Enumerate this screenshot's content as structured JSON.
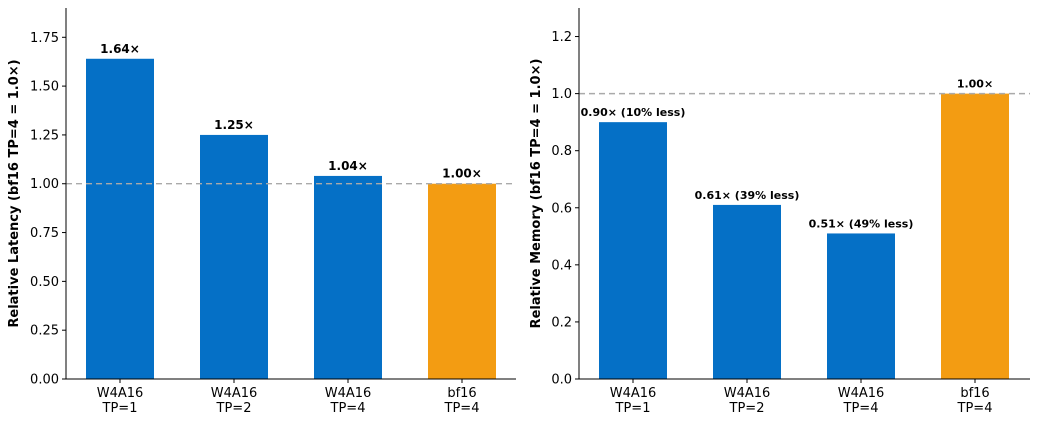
{
  "colors": {
    "quantized": "#0570c6",
    "baseline": "#f39c12",
    "reference_line": "#aaaaaa"
  },
  "chart_data": [
    {
      "type": "bar",
      "title": "",
      "xlabel": "",
      "ylabel": "Relative Latency (bf16 TP=4 = 1.0×)",
      "categories": [
        [
          "W4A16",
          "TP=1"
        ],
        [
          "W4A16",
          "TP=2"
        ],
        [
          "W4A16",
          "TP=4"
        ],
        [
          "bf16",
          "TP=4"
        ]
      ],
      "values": [
        1.64,
        1.25,
        1.04,
        1.0
      ],
      "data_labels": [
        "1.64×",
        "1.25×",
        "1.04×",
        "1.00×"
      ],
      "bar_colors": [
        "#0570c6",
        "#0570c6",
        "#0570c6",
        "#f39c12"
      ],
      "ylim": [
        0,
        1.9
      ],
      "yticks": [
        0,
        0.25,
        0.5,
        0.75,
        1.0,
        1.25,
        1.5,
        1.75
      ],
      "ytick_labels": [
        "0.00",
        "0.25",
        "0.50",
        "0.75",
        "1.00",
        "1.25",
        "1.50",
        "1.75"
      ],
      "reference_line": 1.0,
      "grid": false
    },
    {
      "type": "bar",
      "title": "",
      "xlabel": "",
      "ylabel": "Relative Memory (bf16 TP=4 = 1.0×)",
      "categories": [
        [
          "W4A16",
          "TP=1"
        ],
        [
          "W4A16",
          "TP=2"
        ],
        [
          "W4A16",
          "TP=4"
        ],
        [
          "bf16",
          "TP=4"
        ]
      ],
      "values": [
        0.9,
        0.61,
        0.51,
        1.0
      ],
      "data_labels": [
        "0.90× (10% less)",
        "0.61× (39% less)",
        "0.51× (49% less)",
        "1.00×"
      ],
      "bar_colors": [
        "#0570c6",
        "#0570c6",
        "#0570c6",
        "#f39c12"
      ],
      "ylim": [
        0,
        1.3
      ],
      "yticks": [
        0,
        0.2,
        0.4,
        0.6,
        0.8,
        1.0,
        1.2
      ],
      "ytick_labels": [
        "0.0",
        "0.2",
        "0.4",
        "0.6",
        "0.8",
        "1.0",
        "1.2"
      ],
      "reference_line": 1.0,
      "grid": false
    }
  ]
}
